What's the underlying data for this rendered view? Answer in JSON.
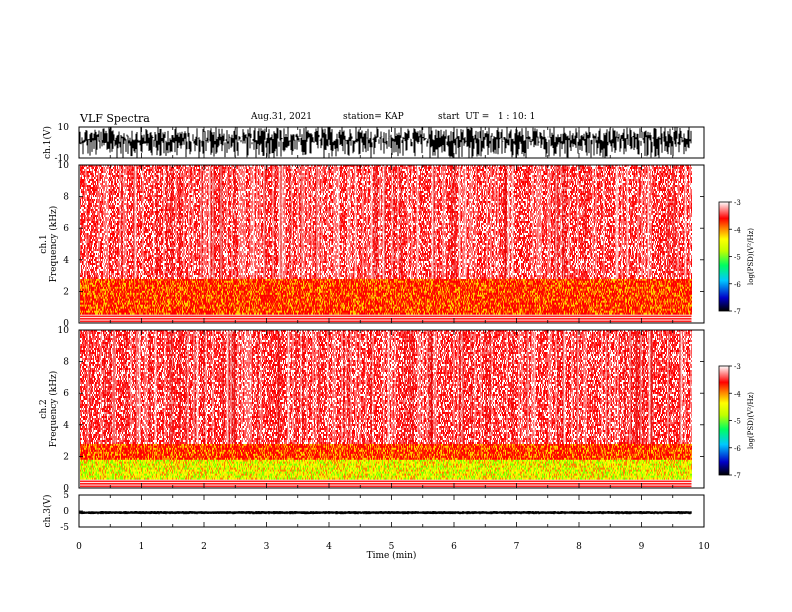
{
  "header": {
    "title": "VLF Spectra",
    "date": "Aug.31, 2021",
    "station": "station= KAP",
    "start": "start  UT =   1 : 10: 1"
  },
  "chart_data": [
    {
      "type": "line",
      "panel": "waveform-ch1",
      "ylabel": "ch.1(V)",
      "ylim": [
        -10,
        10
      ],
      "y_ticks": [
        10,
        -10
      ],
      "xlim": [
        0,
        10
      ],
      "trace_range": [
        -10,
        10
      ],
      "trace_end": 9.8
    },
    {
      "type": "heatmap",
      "panel": "spectrogram-ch1",
      "ylabel_lines": [
        "ch.1",
        "Frequency (kHz)"
      ],
      "ylim": [
        0,
        10
      ],
      "y_ticks": [
        0,
        2,
        4,
        6,
        8,
        10
      ],
      "xlim": [
        0,
        10
      ],
      "data_end": 9.8,
      "bands": [
        {
          "f0": 0,
          "f1": 0.6,
          "level": "white-lines"
        },
        {
          "f0": 0.6,
          "f1": 1.8,
          "level": -4.0
        },
        {
          "f0": 1.8,
          "f1": 2.8,
          "level": -3.9
        },
        {
          "f0": 2.8,
          "f1": 10,
          "level": -3.3
        }
      ],
      "colorbar": {
        "label": "log(PSD)(V²/Hz)",
        "range": [
          -7,
          -3
        ],
        "ticks": [
          -3,
          -4,
          -5,
          -6,
          -7
        ]
      }
    },
    {
      "type": "heatmap",
      "panel": "spectrogram-ch2",
      "ylabel_lines": [
        "ch.2",
        "Frequency (kHz)"
      ],
      "ylim": [
        0,
        10
      ],
      "y_ticks": [
        0,
        2,
        4,
        6,
        8,
        10
      ],
      "xlim": [
        0,
        10
      ],
      "data_end": 9.8,
      "bands": [
        {
          "f0": 0,
          "f1": 0.6,
          "level": "white-lines"
        },
        {
          "f0": 0.6,
          "f1": 1.8,
          "level": -4.6
        },
        {
          "f0": 1.8,
          "f1": 2.8,
          "level": -3.9
        },
        {
          "f0": 2.8,
          "f1": 10,
          "level": -3.3
        }
      ],
      "colorbar": {
        "label": "log(PSD)(V²/Hz)",
        "range": [
          -7,
          -3
        ],
        "ticks": [
          -3,
          -4,
          -5,
          -6,
          -7
        ]
      }
    },
    {
      "type": "line",
      "panel": "waveform-ch3",
      "ylabel": "ch.3(V)",
      "ylim": [
        -5,
        5
      ],
      "y_ticks": [
        5,
        0,
        -5
      ],
      "xlim": [
        0,
        10
      ],
      "trace_range": [
        -1,
        0
      ],
      "trace_end": 9.8
    }
  ],
  "xaxis": {
    "label": "Time (min)",
    "ticks": [
      "0",
      "1",
      "2",
      "3",
      "4",
      "5",
      "6",
      "7",
      "8",
      "9",
      "10"
    ]
  }
}
